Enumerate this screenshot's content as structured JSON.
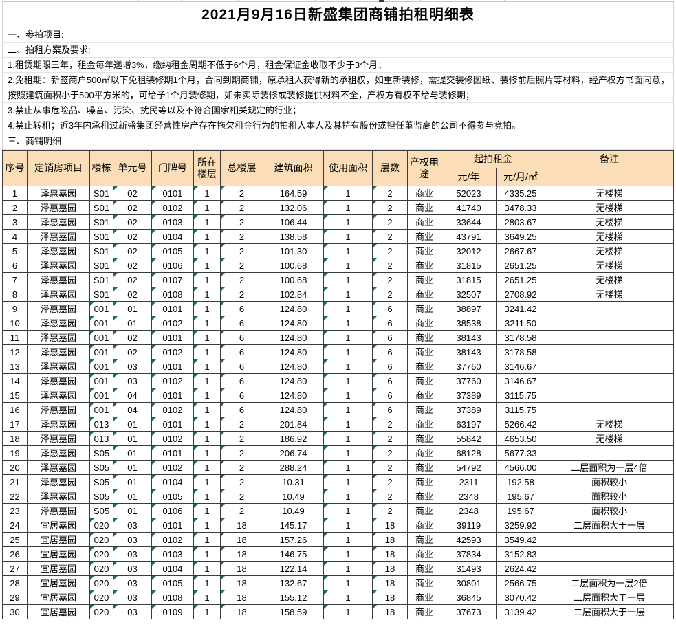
{
  "title": "2021月9月16日新盛集团商铺拍租明细表",
  "sections": {
    "section1_title": "一、参拍项目:",
    "section2_title": "二、拍租方案及要求:",
    "rules": [
      {
        "text": "1.租赁期限三年，租金每年递增3%，缴纳租金周期不低于6个月，租金保证金收取不少于3个月；"
      },
      {
        "line1": "2.免租期：新签商户500㎡以下免租装修期1个月，合同到期商铺，原承租人获得新的承租权，如重新装修，需提交装修图纸、装修前后照片等材料，经产权方书面同意，",
        "line2": "按照建筑面积小于500平方米的，可给予1个月装修期，如未实际装修或装修提供材料不全，产权方有权不给与装修期；"
      },
      {
        "text": "3.禁止从事危险品、噪音、污染、扰民等以及不符合国家相关规定的行业；"
      },
      {
        "text": "4.禁止转租；近3年内承租过新盛集团经营性房产存在拖欠租金行为的拍租人本人及其持有股份或担任董监高的公司不得参与竞拍。"
      }
    ],
    "section3_title": "三、商铺明细"
  },
  "table": {
    "headers": {
      "seq": "序号",
      "project": "定销房项目",
      "building": "楼栋",
      "unit": "单元号",
      "door": "门牌号",
      "floor": "所在楼层",
      "total_floors": "总楼层",
      "build_area": "建筑面积",
      "use_area": "使用面积",
      "floors": "层数",
      "usage": "产权用途",
      "start_rent": "起拍租金",
      "rent_year": "元/年",
      "rent_month": "元/月/㎡",
      "remark": "备注"
    },
    "col_keys": [
      "seq",
      "project",
      "building",
      "unit",
      "door",
      "floor",
      "total_floors",
      "build_area",
      "use_area",
      "floors",
      "usage",
      "rent_year",
      "rent_month",
      "remark"
    ],
    "rows": [
      {
        "values": [
          "1",
          "泽惠嘉园",
          "S01",
          "02",
          "0101",
          "1",
          "2",
          "164.59",
          "1",
          "2",
          "商业",
          "52023",
          "4335.25",
          "无楼梯"
        ],
        "tri": [
          3,
          4,
          5,
          6,
          8,
          9
        ]
      },
      {
        "values": [
          "2",
          "泽惠嘉园",
          "S01",
          "02",
          "0102",
          "1",
          "2",
          "132.06",
          "1",
          "2",
          "商业",
          "41740",
          "3478.33",
          "无楼梯"
        ],
        "tri": [
          3,
          4,
          5,
          6,
          8,
          9
        ]
      },
      {
        "values": [
          "3",
          "泽惠嘉园",
          "S01",
          "02",
          "0103",
          "1",
          "2",
          "106.44",
          "1",
          "2",
          "商业",
          "33644",
          "2803.67",
          "无楼梯"
        ],
        "tri": [
          3,
          4,
          5,
          6,
          8,
          9
        ]
      },
      {
        "values": [
          "4",
          "泽惠嘉园",
          "S01",
          "02",
          "0104",
          "1",
          "2",
          "138.58",
          "1",
          "2",
          "商业",
          "43791",
          "3649.25",
          "无楼梯"
        ],
        "tri": [
          3,
          4,
          5,
          6,
          8,
          9
        ]
      },
      {
        "values": [
          "5",
          "泽惠嘉园",
          "S01",
          "02",
          "0105",
          "1",
          "2",
          "101.30",
          "1",
          "2",
          "商业",
          "32012",
          "2667.67",
          "无楼梯"
        ],
        "tri": [
          3,
          4,
          5,
          6,
          8,
          9
        ]
      },
      {
        "values": [
          "6",
          "泽惠嘉园",
          "S01",
          "02",
          "0106",
          "1",
          "2",
          "100.68",
          "1",
          "2",
          "商业",
          "31815",
          "2651.25",
          "无楼梯"
        ],
        "tri": [
          3,
          4,
          5,
          6,
          8,
          9
        ]
      },
      {
        "values": [
          "7",
          "泽惠嘉园",
          "S01",
          "02",
          "0107",
          "1",
          "2",
          "100.68",
          "1",
          "2",
          "商业",
          "31815",
          "2651.25",
          "无楼梯"
        ],
        "tri": [
          3,
          4,
          5,
          6,
          8,
          9
        ]
      },
      {
        "values": [
          "8",
          "泽惠嘉园",
          "S01",
          "02",
          "0108",
          "1",
          "2",
          "102.84",
          "1",
          "2",
          "商业",
          "32507",
          "2708.92",
          "无楼梯"
        ],
        "tri": [
          3,
          4,
          5,
          6,
          8,
          9
        ]
      },
      {
        "values": [
          "9",
          "泽惠嘉园",
          "001",
          "01",
          "0101",
          "1",
          "6",
          "124.80",
          "1",
          "6",
          "商业",
          "38897",
          "3241.42",
          ""
        ],
        "tri": [
          2,
          3,
          4,
          5,
          6,
          8,
          9
        ]
      },
      {
        "values": [
          "10",
          "泽惠嘉园",
          "001",
          "01",
          "0102",
          "1",
          "6",
          "124.80",
          "1",
          "6",
          "商业",
          "38538",
          "3211.50",
          ""
        ],
        "tri": [
          2,
          3,
          4,
          5,
          6,
          8,
          9
        ]
      },
      {
        "values": [
          "11",
          "泽惠嘉园",
          "001",
          "02",
          "0101",
          "1",
          "6",
          "124.80",
          "1",
          "6",
          "商业",
          "38143",
          "3178.58",
          ""
        ],
        "tri": [
          2,
          3,
          4,
          5,
          6,
          8,
          9
        ]
      },
      {
        "values": [
          "12",
          "泽惠嘉园",
          "001",
          "02",
          "0102",
          "1",
          "6",
          "124.80",
          "1",
          "6",
          "商业",
          "38143",
          "3178.58",
          ""
        ],
        "tri": [
          2,
          3,
          4,
          5,
          6,
          8,
          9
        ]
      },
      {
        "values": [
          "13",
          "泽惠嘉园",
          "001",
          "03",
          "0101",
          "1",
          "6",
          "124.80",
          "1",
          "6",
          "商业",
          "37760",
          "3146.67",
          ""
        ],
        "tri": [
          2,
          3,
          4,
          5,
          6,
          8,
          9
        ]
      },
      {
        "values": [
          "14",
          "泽惠嘉园",
          "001",
          "03",
          "0102",
          "1",
          "6",
          "124.80",
          "1",
          "6",
          "商业",
          "37760",
          "3146.67",
          ""
        ],
        "tri": [
          2,
          3,
          4,
          5,
          6,
          8,
          9
        ]
      },
      {
        "values": [
          "15",
          "泽惠嘉园",
          "001",
          "04",
          "0101",
          "1",
          "6",
          "124.80",
          "1",
          "6",
          "商业",
          "37389",
          "3115.75",
          ""
        ],
        "tri": [
          2,
          3,
          4,
          5,
          6,
          8,
          9
        ]
      },
      {
        "values": [
          "16",
          "泽惠嘉园",
          "001",
          "04",
          "0102",
          "1",
          "6",
          "124.80",
          "1",
          "6",
          "商业",
          "37389",
          "3115.75",
          ""
        ],
        "tri": [
          2,
          3,
          4,
          5,
          6,
          8,
          9
        ]
      },
      {
        "values": [
          "17",
          "泽惠嘉园",
          "013",
          "01",
          "0101",
          "1",
          "2",
          "201.84",
          "1",
          "2",
          "商业",
          "63197",
          "5266.42",
          "无楼梯"
        ],
        "tri": [
          2,
          3,
          4,
          5,
          6,
          8,
          9
        ]
      },
      {
        "values": [
          "18",
          "泽惠嘉园",
          "013",
          "01",
          "0102",
          "1",
          "2",
          "186.92",
          "1",
          "2",
          "商业",
          "55842",
          "4653.50",
          "无楼梯"
        ],
        "tri": [
          2,
          3,
          4,
          5,
          6,
          8,
          9
        ]
      },
      {
        "values": [
          "19",
          "泽惠嘉园",
          "S05",
          "01",
          "0101",
          "1",
          "2",
          "206.74",
          "1",
          "2",
          "商业",
          "68128",
          "5677.33",
          ""
        ],
        "tri": [
          3,
          4,
          5,
          6,
          8,
          9
        ]
      },
      {
        "values": [
          "20",
          "泽惠嘉园",
          "S05",
          "01",
          "0102",
          "1",
          "2",
          "288.24",
          "1",
          "2",
          "商业",
          "54792",
          "4566.00",
          "二层面积为一层4倍"
        ],
        "tri": [
          3,
          4,
          5,
          6,
          8,
          9
        ]
      },
      {
        "values": [
          "21",
          "泽惠嘉园",
          "S05",
          "01",
          "0104",
          "1",
          "2",
          "10.31",
          "1",
          "2",
          "商业",
          "2311",
          "192.58",
          "面积较小"
        ],
        "tri": [
          3,
          4,
          5,
          6,
          8,
          9
        ]
      },
      {
        "values": [
          "22",
          "泽惠嘉园",
          "S05",
          "01",
          "0105",
          "1",
          "2",
          "10.49",
          "1",
          "2",
          "商业",
          "2348",
          "195.67",
          "面积较小"
        ],
        "tri": [
          3,
          4,
          5,
          6,
          8,
          9
        ]
      },
      {
        "values": [
          "23",
          "泽惠嘉园",
          "S05",
          "01",
          "0106",
          "1",
          "2",
          "10.49",
          "1",
          "2",
          "商业",
          "2348",
          "195.67",
          "面积较小"
        ],
        "tri": [
          3,
          4,
          5,
          6,
          8,
          9
        ]
      },
      {
        "values": [
          "24",
          "宜居嘉园",
          "020",
          "03",
          "0101",
          "1",
          "18",
          "145.17",
          "1",
          "18",
          "商业",
          "39119",
          "3259.92",
          "二层面积大于一层"
        ],
        "tri": [
          2,
          3,
          4,
          5,
          6,
          8,
          9
        ]
      },
      {
        "values": [
          "25",
          "宜居嘉园",
          "020",
          "03",
          "0102",
          "1",
          "18",
          "157.26",
          "1",
          "18",
          "商业",
          "42593",
          "3549.42",
          ""
        ],
        "tri": [
          2,
          3,
          4,
          5,
          6,
          8,
          9
        ]
      },
      {
        "values": [
          "26",
          "宜居嘉园",
          "020",
          "03",
          "0103",
          "1",
          "18",
          "146.75",
          "1",
          "18",
          "商业",
          "37834",
          "3152.83",
          ""
        ],
        "tri": [
          2,
          3,
          4,
          5,
          6,
          8,
          9
        ]
      },
      {
        "values": [
          "27",
          "宜居嘉园",
          "020",
          "03",
          "0104",
          "1",
          "18",
          "122.14",
          "1",
          "18",
          "商业",
          "31493",
          "2624.42",
          ""
        ],
        "tri": [
          2,
          3,
          4,
          5,
          6,
          8,
          9
        ]
      },
      {
        "values": [
          "28",
          "宜居嘉园",
          "020",
          "03",
          "0105",
          "1",
          "18",
          "132.67",
          "1",
          "18",
          "商业",
          "30801",
          "2566.75",
          "二层面积为一层2倍"
        ],
        "tri": [
          2,
          3,
          4,
          5,
          6,
          8,
          9
        ]
      },
      {
        "values": [
          "29",
          "宜居嘉园",
          "020",
          "03",
          "0108",
          "1",
          "18",
          "155.12",
          "1",
          "18",
          "商业",
          "36845",
          "3070.42",
          "二层面积大于一层"
        ],
        "tri": [
          2,
          3,
          4,
          5,
          6,
          8,
          9
        ]
      },
      {
        "values": [
          "30",
          "宜居嘉园",
          "020",
          "03",
          "0109",
          "1",
          "18",
          "158.59",
          "1",
          "18",
          "商业",
          "37673",
          "3139.42",
          "二层面积大于一层"
        ],
        "tri": [
          2,
          3,
          4,
          5,
          6,
          8,
          9
        ]
      }
    ]
  },
  "colors": {
    "header_bg": "#fbddb7",
    "error_triangle": "#1e7145",
    "grid_dark": "#3c3c3c",
    "grid_light": "#e4e4e4"
  }
}
